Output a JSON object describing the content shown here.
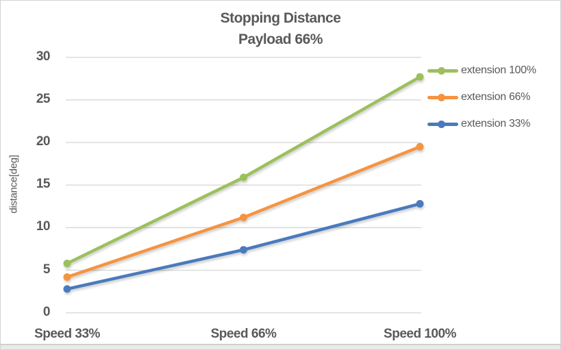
{
  "chart_data": {
    "type": "line",
    "title": "Stopping Distance",
    "subtitle": "Payload 66%",
    "categories": [
      "Speed 33%",
      "Speed 66%",
      "Speed 100%"
    ],
    "series": [
      {
        "name": "extension 100%",
        "color": "#9CC05C",
        "values": [
          5.8,
          15.9,
          27.7
        ]
      },
      {
        "name": "extension 66%",
        "color": "#F59440",
        "values": [
          4.2,
          11.2,
          19.5
        ]
      },
      {
        "name": "extension 33%",
        "color": "#4A7ABD",
        "values": [
          2.8,
          7.4,
          12.8
        ]
      }
    ],
    "xlabel": "",
    "ylabel": "distance[deg]",
    "ylim": [
      0,
      30
    ],
    "yticks": [
      0,
      5,
      10,
      15,
      20,
      25,
      30
    ],
    "grid": "horizontal",
    "legend_position": "right",
    "marker": "circle"
  },
  "theme": {
    "text_color": "#595959",
    "gridline_color": "#D9D9D9",
    "background": "#FFFFFF",
    "border_color": "#D2D2D2"
  }
}
